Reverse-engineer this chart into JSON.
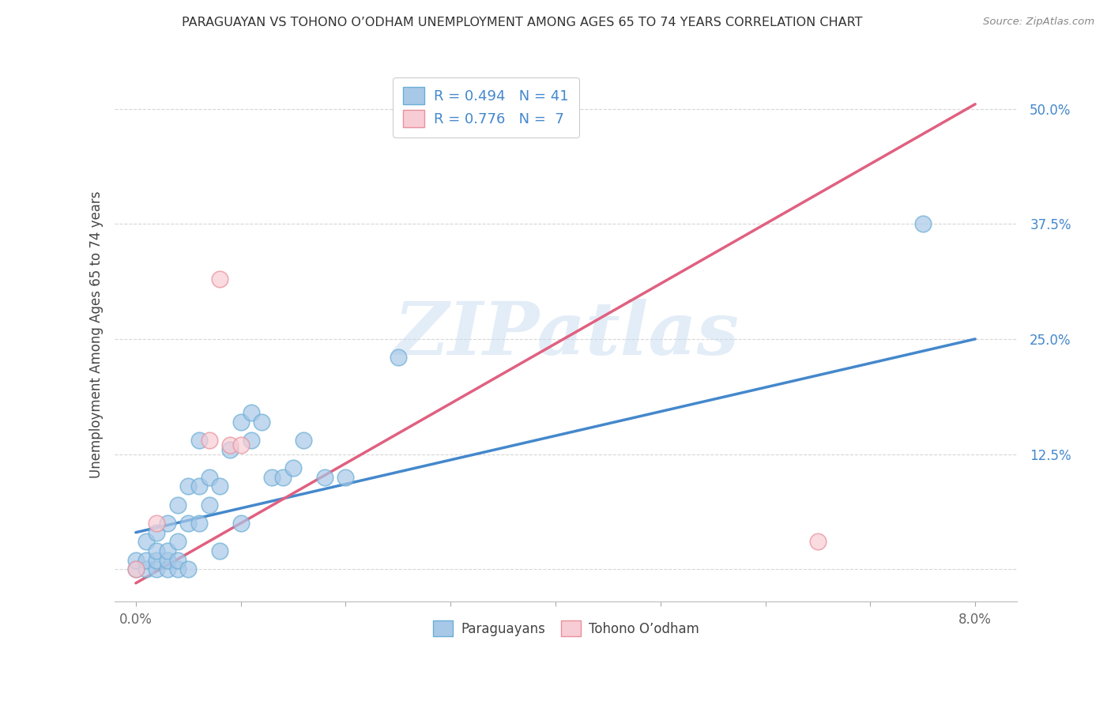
{
  "title": "PARAGUAYAN VS TOHONO O’ODHAM UNEMPLOYMENT AMONG AGES 65 TO 74 YEARS CORRELATION CHART",
  "source": "Source: ZipAtlas.com",
  "ylabel": "Unemployment Among Ages 65 to 74 years",
  "xlim": [
    -0.002,
    0.084
  ],
  "ylim": [
    -0.035,
    0.545
  ],
  "blue_r": 0.494,
  "blue_n": 41,
  "pink_r": 0.776,
  "pink_n": 7,
  "blue_dot_color": "#a8c8e8",
  "blue_dot_edge": "#6aaed6",
  "pink_dot_color": "#f8ccd4",
  "pink_dot_edge": "#e8909e",
  "blue_line_color": "#4488cc",
  "pink_line_color": "#e06080",
  "legend_label_blue": "Paraguayans",
  "legend_label_pink": "Tohono O’odham",
  "watermark": "ZIPatlas",
  "blue_points_x": [
    0.0,
    0.0,
    0.001,
    0.001,
    0.001,
    0.002,
    0.002,
    0.002,
    0.002,
    0.003,
    0.003,
    0.003,
    0.003,
    0.004,
    0.004,
    0.004,
    0.004,
    0.005,
    0.005,
    0.005,
    0.006,
    0.006,
    0.006,
    0.007,
    0.007,
    0.008,
    0.008,
    0.009,
    0.01,
    0.01,
    0.011,
    0.011,
    0.012,
    0.013,
    0.014,
    0.015,
    0.016,
    0.018,
    0.02,
    0.025,
    0.075
  ],
  "blue_points_y": [
    0.0,
    0.01,
    0.0,
    0.01,
    0.03,
    0.0,
    0.01,
    0.02,
    0.04,
    0.0,
    0.01,
    0.02,
    0.05,
    0.0,
    0.01,
    0.03,
    0.07,
    0.0,
    0.05,
    0.09,
    0.05,
    0.09,
    0.14,
    0.07,
    0.1,
    0.02,
    0.09,
    0.13,
    0.05,
    0.16,
    0.14,
    0.17,
    0.16,
    0.1,
    0.1,
    0.11,
    0.14,
    0.1,
    0.1,
    0.23,
    0.375
  ],
  "pink_points_x": [
    0.0,
    0.002,
    0.007,
    0.008,
    0.009,
    0.01,
    0.065
  ],
  "pink_points_y": [
    0.0,
    0.05,
    0.14,
    0.315,
    0.135,
    0.135,
    0.03
  ],
  "blue_trend_x": [
    0.0,
    0.08
  ],
  "blue_trend_y": [
    0.04,
    0.25
  ],
  "pink_trend_x": [
    0.0,
    0.08
  ],
  "pink_trend_y": [
    -0.015,
    0.505
  ],
  "x_ticks": [
    0.0,
    0.01,
    0.02,
    0.03,
    0.04,
    0.05,
    0.06,
    0.07,
    0.08
  ],
  "y_ticks": [
    0.0,
    0.125,
    0.25,
    0.375,
    0.5
  ],
  "background_color": "#ffffff",
  "grid_color": "#cccccc",
  "title_fontsize": 11.5,
  "tick_fontsize": 12,
  "ylabel_fontsize": 12,
  "legend_fontsize": 13
}
